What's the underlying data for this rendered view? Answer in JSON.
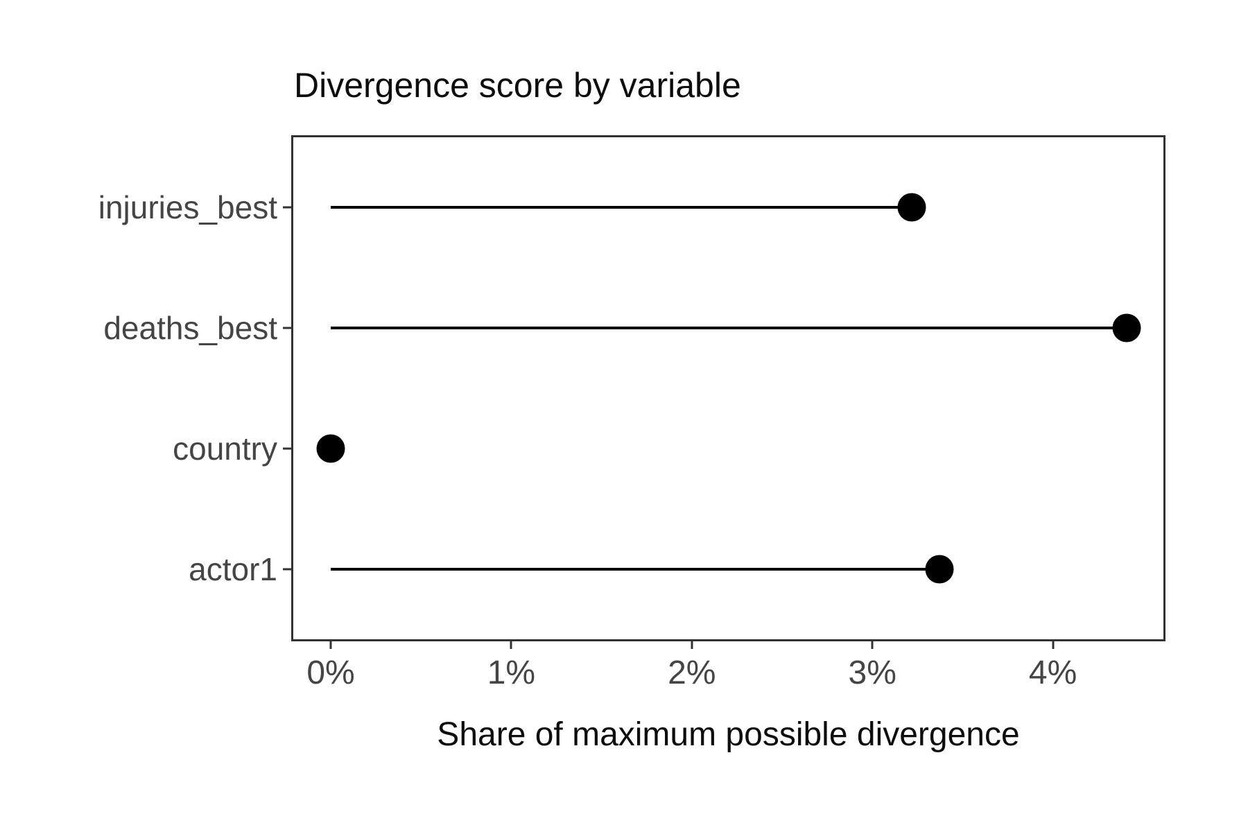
{
  "chart_data": {
    "type": "bar",
    "variant": "horizontal-lollipop",
    "title": "Divergence score by variable",
    "xlabel": "Share of maximum possible divergence",
    "ylabel": "",
    "categories": [
      "injuries_best",
      "deaths_best",
      "country",
      "actor1"
    ],
    "values": [
      3.22,
      4.41,
      0.0,
      3.37
    ],
    "value_format": "percent",
    "xlim": [
      0,
      4.63
    ],
    "x_ticks": [
      0,
      1,
      2,
      3,
      4
    ],
    "x_tick_labels": [
      "0%",
      "1%",
      "2%",
      "3%",
      "4%"
    ],
    "grid": "off",
    "legend": "none",
    "colors": {
      "point": "#000000",
      "stem": "#000000",
      "panel_border": "#333333",
      "axis_text": "#454545",
      "title_text": "#0d0d0d",
      "background": "#ffffff"
    }
  }
}
